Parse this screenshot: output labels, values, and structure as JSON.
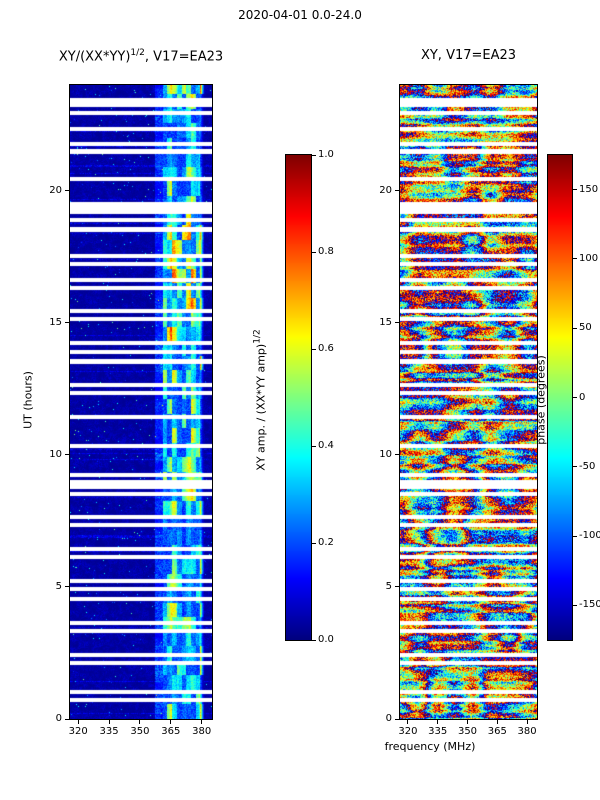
{
  "figure_title": "2020-04-01 0.0-24.0",
  "left_panel": {
    "title_prefix": "XY/(XX*YY)",
    "title_sup": "1/2",
    "title_suffix": ", V17=EA23",
    "ylabel": "UT (hours)",
    "ytick_labels": [
      "0",
      "5",
      "10",
      "15",
      "20"
    ],
    "ytick_values": [
      0,
      5,
      10,
      15,
      20
    ],
    "xtick_labels": [
      "320",
      "335",
      "350",
      "365",
      "380"
    ],
    "xtick_values": [
      320,
      335,
      350,
      365,
      380
    ]
  },
  "right_panel": {
    "title": "XY, V17=EA23",
    "xlabel": "frequency (MHz)",
    "ytick_labels": [
      "0",
      "5",
      "10",
      "15",
      "20"
    ],
    "ytick_values": [
      0,
      5,
      10,
      15,
      20
    ],
    "xtick_labels": [
      "320",
      "335",
      "350",
      "365",
      "380"
    ],
    "xtick_values": [
      320,
      335,
      350,
      365,
      380
    ]
  },
  "left_colorbar": {
    "label_prefix": "XY amp. / (XX*YY amp)",
    "label_sup": "1/2",
    "tick_labels": [
      "0.0",
      "0.2",
      "0.4",
      "0.6",
      "0.8",
      "1.0"
    ],
    "tick_values": [
      0,
      0.2,
      0.4,
      0.6,
      0.8,
      1.0
    ],
    "range": [
      0,
      1
    ]
  },
  "right_colorbar": {
    "label": "phase (degrees)",
    "tick_labels": [
      "150",
      "100",
      "50",
      "0",
      "-50",
      "-100",
      "-150"
    ],
    "tick_values": [
      150,
      100,
      50,
      0,
      -50,
      -100,
      -150
    ],
    "range": [
      -175,
      175
    ]
  },
  "chart_data": [
    {
      "type": "heatmap",
      "title": "XY/(XX*YY)^1/2, V17=EA23",
      "xlabel": "frequency (MHz)",
      "ylabel": "UT (hours)",
      "x_range_mhz": [
        316,
        385
      ],
      "y_range_hours": [
        0,
        24
      ],
      "colormap": "jet",
      "value_range": [
        0,
        1
      ],
      "colorbar_label": "XY amp. / (XX*YY amp)^1/2",
      "background_level": 0.05,
      "active_band_mhz": [
        361,
        381
      ],
      "active_band_levels": [
        0.15,
        0.95
      ],
      "gap_times_hours": [
        0.75,
        1.05,
        2.15,
        2.45,
        3.35,
        3.65,
        4.55,
        4.95,
        5.25,
        6.15,
        6.45,
        7.35,
        7.65,
        8.55,
        9.25,
        10.35,
        11.45,
        12.35,
        12.65,
        13.55,
        13.9,
        14.25,
        15.15,
        15.45,
        16.35,
        16.65,
        17.25,
        17.55,
        18.55,
        18.9,
        19.2,
        19.5,
        20.45,
        21.5,
        21.8,
        22.35,
        22.95
      ],
      "gap_width_hours": 0.12,
      "wide_gap_times_hours": [
        8.9,
        19.35,
        23.35
      ],
      "wide_gap_width_hours": 0.3,
      "seed": 7
    },
    {
      "type": "heatmap",
      "title": "XY, V17=EA23",
      "xlabel": "frequency (MHz)",
      "ylabel": "UT (hours)",
      "x_range_mhz": [
        316,
        385
      ],
      "y_range_hours": [
        0,
        24
      ],
      "colormap": "jet",
      "value_range_degrees": [
        -175,
        175
      ],
      "colorbar_label": "phase (degrees)",
      "gap_times_hours": [
        0.75,
        1.05,
        2.15,
        2.45,
        3.35,
        3.65,
        4.55,
        4.95,
        5.25,
        6.15,
        6.45,
        7.35,
        7.65,
        8.55,
        9.25,
        10.35,
        11.45,
        12.35,
        12.65,
        13.55,
        13.9,
        14.25,
        15.15,
        15.45,
        16.35,
        16.65,
        17.25,
        17.55,
        18.55,
        18.9,
        19.2,
        19.5,
        20.45,
        21.5,
        21.8,
        22.35,
        22.95
      ],
      "gap_width_hours": 0.12,
      "wide_gap_times_hours": [
        8.9,
        19.35,
        23.35
      ],
      "wide_gap_width_hours": 0.3,
      "seed": 41
    }
  ]
}
